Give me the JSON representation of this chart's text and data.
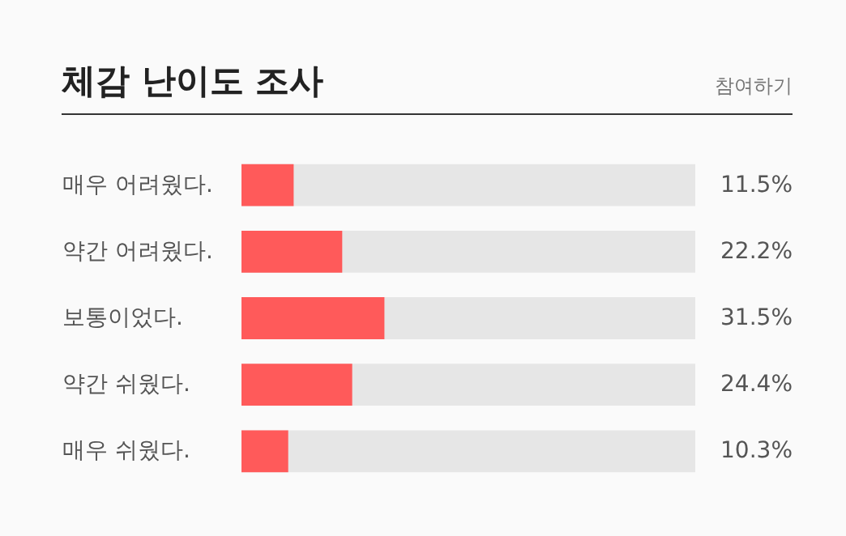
{
  "chart_data": {
    "type": "bar",
    "orientation": "horizontal",
    "title": "체감 난이도 조사",
    "annotations": [
      "참여하기"
    ],
    "categories": [
      "매우 어려웠다.",
      "약간 어려웠다.",
      "보통이었다.",
      "약간 쉬웠다.",
      "매우 쉬웠다."
    ],
    "values": [
      11.5,
      22.2,
      31.5,
      24.4,
      10.3
    ],
    "color": "#ff5a5a",
    "value_labels": [
      "11.5%",
      "22.2%",
      "31.5%",
      "24.4%",
      "10.3%"
    ],
    "xlim": [
      0,
      100
    ],
    "grid": false
  }
}
